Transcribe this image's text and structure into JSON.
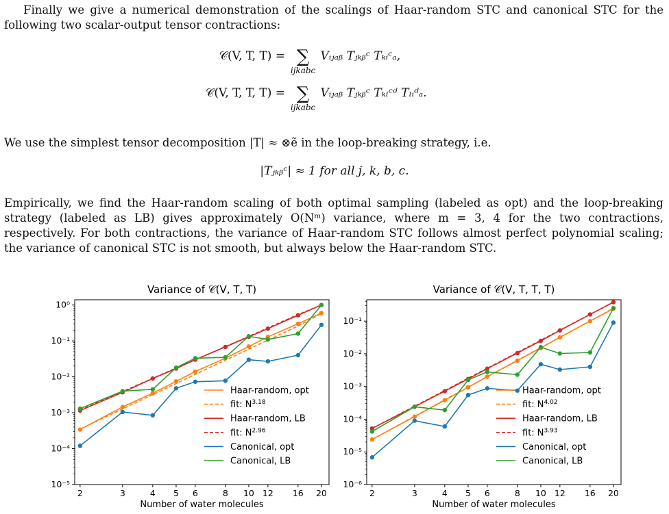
{
  "text": {
    "p1": "Finally we give a numerical demonstration of the scalings of Haar-random STC and canonical STC for the following two scalar-output tensor contractions:",
    "eq1_lhs": "𝒞(V, T, T) =",
    "eq1_rhs": "Vᵢⱼₐᵦ Tⱼₖᵦᶜ Tₖᵢᶜₐ,",
    "eq2_lhs": "𝒞(V, T, T, T) =",
    "eq2_rhs": "Vᵢⱼₐᵦ Tⱼₖᵦᶜ Tₖₗᶜᵈ Tₗᵢᵈₐ.",
    "sum_index": "ijkabc",
    "p2": "We use the simplest tensor decomposition |T| ≈ ⊗ẽ in the loop-breaking strategy, i.e.",
    "eq3": "|Tⱼₖᵦᶜ| ≈ 1 for all j, k, b, c.",
    "p3": "Empirically, we find the Haar-random scaling of both optimal sampling (labeled as opt) and the loop-breaking strategy (labeled as LB) gives approximately O(Nᵐ) variance, where m = 3, 4 for the two contractions, respectively. For both contractions, the variance of Haar-random STC follows almost perfect polynomial scaling; the variance of canonical STC is not smooth, but always below the Haar-random STC."
  },
  "chart_data": [
    {
      "type": "line",
      "title": "Variance of 𝒞(V, T, T)",
      "xlabel": "Number of water molecules",
      "ylabel": "",
      "xscale": "log",
      "yscale": "log",
      "xlim": [
        1.9,
        21.5
      ],
      "ylim": [
        1e-05,
        1.4
      ],
      "xticks": [
        2,
        3,
        4,
        5,
        6,
        8,
        10,
        12,
        16,
        20
      ],
      "yticks": [
        1e-05,
        0.0001,
        0.001,
        0.01,
        0.1,
        1
      ],
      "ytick_labels": [
        "10⁻⁵",
        "10⁻⁴",
        "10⁻³",
        "10⁻²",
        "10⁻¹",
        "10⁰"
      ],
      "legend_position": "lower-right",
      "x": [
        2,
        3,
        4,
        5,
        6,
        8,
        10,
        12,
        16,
        20
      ],
      "series": [
        {
          "name": "Haar-random, opt",
          "style": "solid",
          "marker": true,
          "color": "#ff7f0e",
          "values": [
            0.00034,
            0.00145,
            0.0035,
            0.0075,
            0.014,
            0.033,
            0.07,
            0.13,
            0.3,
            0.6
          ]
        },
        {
          "name": "fit: N3.18",
          "label_base": "fit: N",
          "label_exp": "3.18",
          "style": "dashed",
          "marker": false,
          "color": "#ff7f0e",
          "values": [
            0.00035,
            0.00128,
            0.0032,
            0.0065,
            0.0117,
            0.029,
            0.059,
            0.105,
            0.26,
            0.58
          ]
        },
        {
          "name": "Haar-random, LB",
          "style": "solid",
          "marker": true,
          "color": "#d62728",
          "values": [
            0.00115,
            0.0037,
            0.009,
            0.017,
            0.03,
            0.068,
            0.13,
            0.22,
            0.52,
            1.0
          ]
        },
        {
          "name": "fit: N2.96",
          "label_base": "fit: N",
          "label_exp": "2.96",
          "style": "dashed",
          "marker": false,
          "color": "#d62728",
          "values": [
            0.00118,
            0.0039,
            0.0091,
            0.0176,
            0.0298,
            0.0695,
            0.134,
            0.23,
            0.54,
            1.0
          ]
        },
        {
          "name": "Canonical, opt",
          "style": "solid",
          "marker": true,
          "color": "#1f77b4",
          "values": [
            0.00012,
            0.00105,
            0.00085,
            0.0048,
            0.0073,
            0.0078,
            0.03,
            0.027,
            0.04,
            0.28
          ]
        },
        {
          "name": "Canonical, LB",
          "style": "solid",
          "marker": true,
          "color": "#2ca02c",
          "values": [
            0.0013,
            0.004,
            0.0045,
            0.018,
            0.033,
            0.035,
            0.135,
            0.11,
            0.16,
            1.0
          ]
        }
      ]
    },
    {
      "type": "line",
      "title": "Variance of 𝒞(V, T, T, T)",
      "xlabel": "Number of water molecules",
      "ylabel": "",
      "xscale": "log",
      "yscale": "log",
      "xlim": [
        1.9,
        21.5
      ],
      "ylim": [
        1e-06,
        0.45
      ],
      "xticks": [
        2,
        3,
        4,
        5,
        6,
        8,
        10,
        12,
        16,
        20
      ],
      "yticks": [
        1e-06,
        1e-05,
        0.0001,
        0.001,
        0.01,
        0.1
      ],
      "ytick_labels": [
        "10⁻⁶",
        "10⁻⁵",
        "10⁻⁴",
        "10⁻³",
        "10⁻²",
        "10⁻¹"
      ],
      "legend_position": "lower-right",
      "x": [
        2,
        3,
        4,
        5,
        6,
        8,
        10,
        12,
        16,
        20
      ],
      "series": [
        {
          "name": "Haar-random, opt",
          "style": "solid",
          "marker": true,
          "color": "#ff7f0e",
          "values": [
            2.4e-05,
            0.00012,
            0.00038,
            0.00095,
            0.002,
            0.0062,
            0.015,
            0.032,
            0.1,
            0.24
          ]
        },
        {
          "name": "fit: N4.02",
          "label_base": "fit: N",
          "label_exp": "4.02",
          "style": "dashed",
          "marker": false,
          "color": "#ff7f0e",
          "values": [
            2.4e-05,
            0.000123,
            0.00039,
            0.00096,
            0.002,
            0.0063,
            0.0154,
            0.032,
            0.1,
            0.246
          ]
        },
        {
          "name": "Haar-random, LB",
          "style": "solid",
          "marker": true,
          "color": "#d62728",
          "values": [
            5.2e-05,
            0.00024,
            0.00072,
            0.0017,
            0.0035,
            0.0105,
            0.025,
            0.052,
            0.16,
            0.38
          ]
        },
        {
          "name": "fit: N3.93",
          "label_base": "fit: N",
          "label_exp": "3.93",
          "style": "dashed",
          "marker": false,
          "color": "#d62728",
          "values": [
            5.2e-05,
            0.00025,
            0.00075,
            0.0018,
            0.0036,
            0.011,
            0.026,
            0.053,
            0.16,
            0.38
          ]
        },
        {
          "name": "Canonical, opt",
          "style": "solid",
          "marker": true,
          "color": "#1f77b4",
          "values": [
            6.8e-06,
            9e-05,
            6e-05,
            0.00055,
            0.00088,
            0.00075,
            0.0048,
            0.0033,
            0.004,
            0.09
          ]
        },
        {
          "name": "Canonical, LB",
          "style": "solid",
          "marker": true,
          "color": "#2ca02c",
          "values": [
            4.2e-05,
            0.00024,
            0.00019,
            0.0016,
            0.0028,
            0.0023,
            0.016,
            0.0102,
            0.011,
            0.25
          ]
        }
      ]
    }
  ]
}
